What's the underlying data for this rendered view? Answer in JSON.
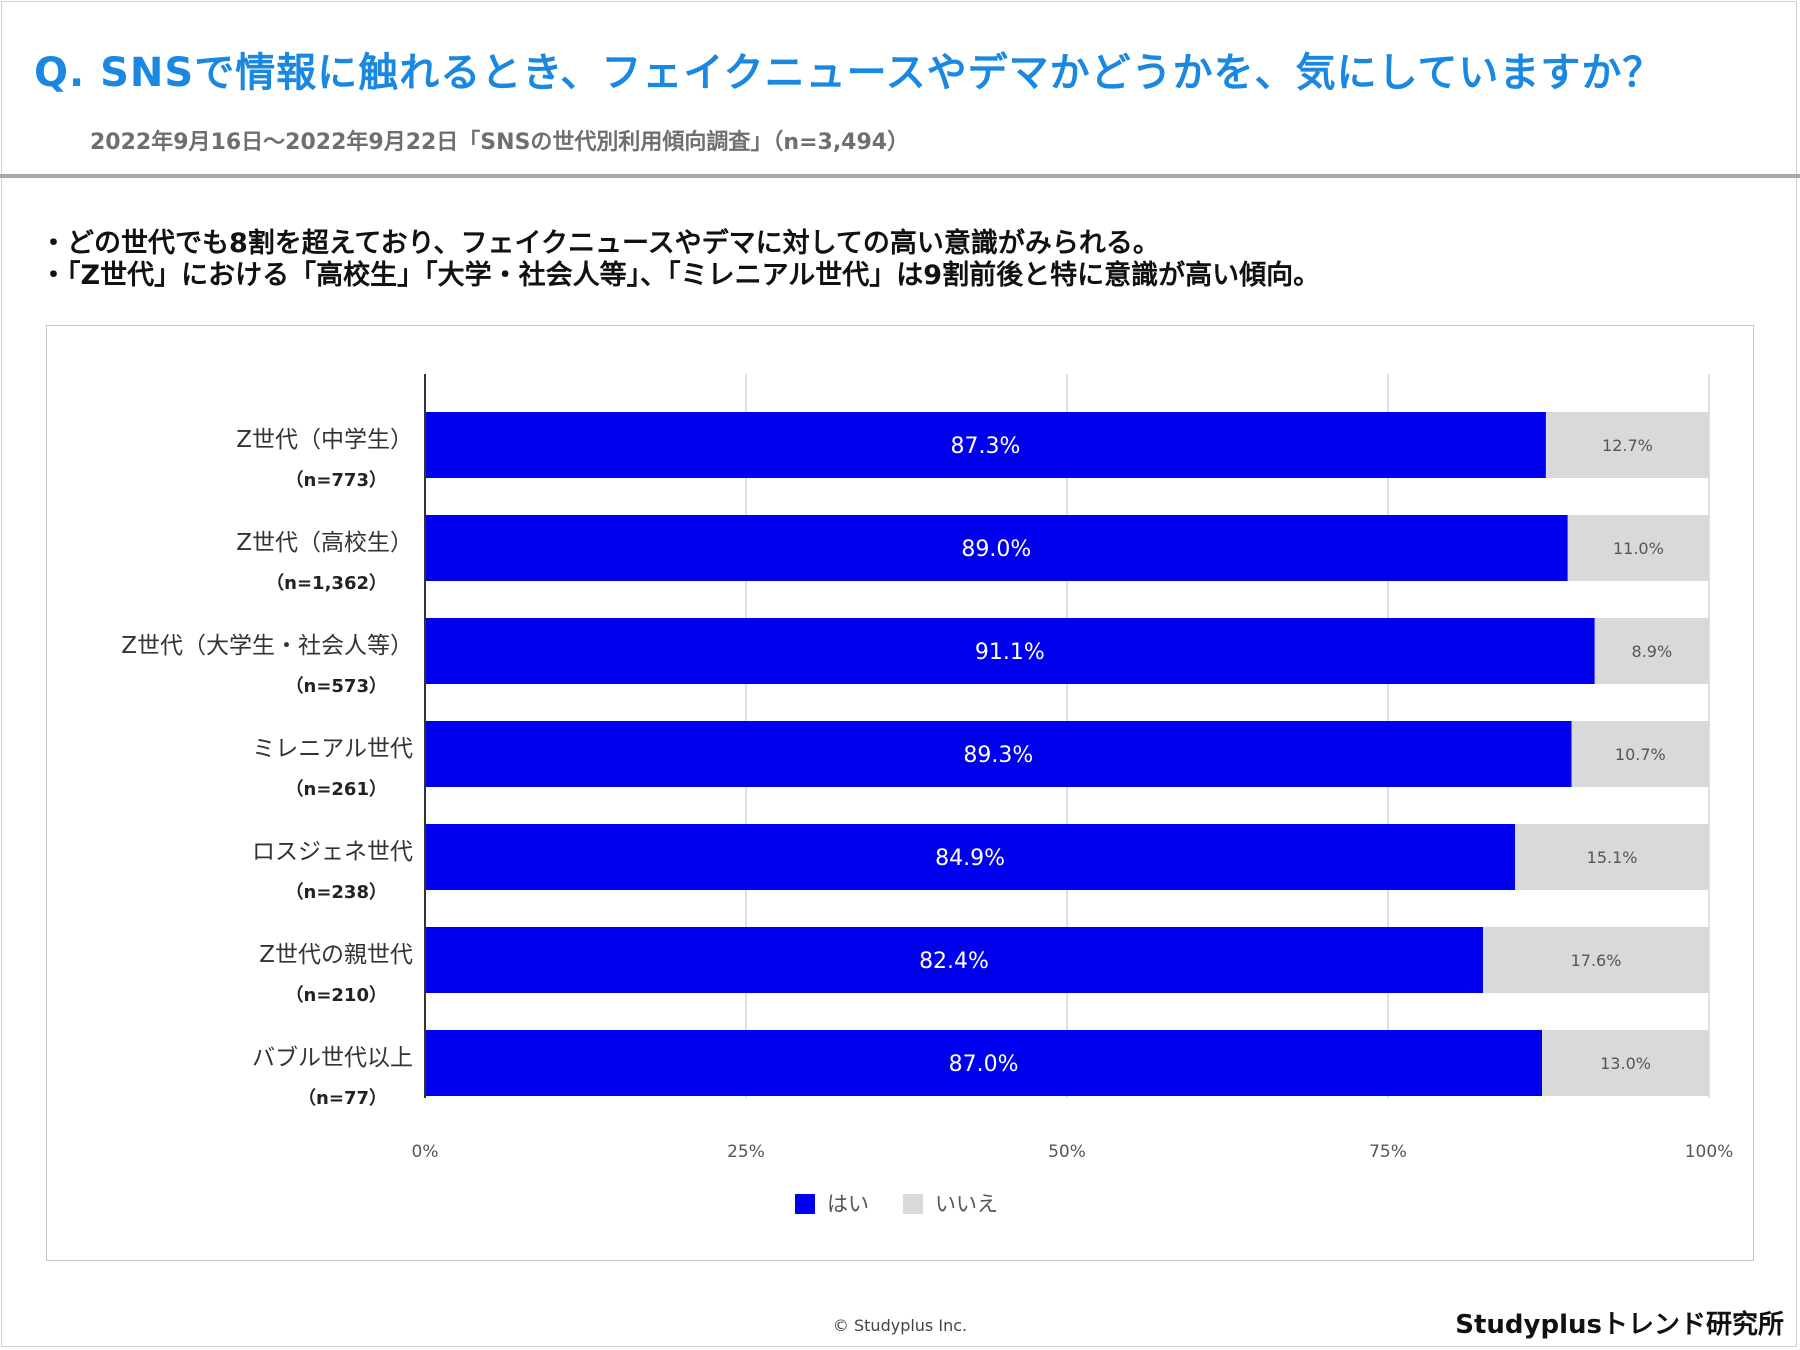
{
  "header": {
    "title": "Q. SNSで情報に触れるとき、フェイクニュースやデマかどうかを、気にしていますか？",
    "subtitle": "2022年9月16日〜2022年9月22日「SNSの世代別利用傾向調査」（n=3,494）"
  },
  "bullets": [
    "・どの世代でも8割を超えており、フェイクニュースやデマに対しての高い意識がみられる。",
    "・「Z世代」における「高校生」「大学・社会人等」、「ミレニアル世代」は9割前後と特に意識が高い傾向。"
  ],
  "chart_data": {
    "type": "bar",
    "orientation": "horizontal",
    "stacked": true,
    "categories": [
      {
        "label": "Z世代（中学生）",
        "n": "（n=773）"
      },
      {
        "label": "Z世代（高校生）",
        "n": "（n=1,362）"
      },
      {
        "label": "Z世代（大学生・社会人等）",
        "n": "（n=573）"
      },
      {
        "label": "ミレニアル世代",
        "n": "（n=261）"
      },
      {
        "label": "ロスジェネ世代",
        "n": "（n=238）"
      },
      {
        "label": "Z世代の親世代",
        "n": "（n=210）"
      },
      {
        "label": "バブル世代以上",
        "n": "（n=77）"
      }
    ],
    "series": [
      {
        "name": "はい",
        "color": "#0000ee",
        "values": [
          87.3,
          89.0,
          91.1,
          89.3,
          84.9,
          82.4,
          87.0
        ],
        "labels": [
          "87.3%",
          "89.0%",
          "91.1%",
          "89.3%",
          "84.9%",
          "82.4%",
          "87.0%"
        ]
      },
      {
        "name": "いいえ",
        "color": "#d9d9d9",
        "values": [
          12.7,
          11.0,
          8.9,
          10.7,
          15.1,
          17.6,
          13.0
        ],
        "labels": [
          "12.7%",
          "11.0%",
          "8.9%",
          "10.7%",
          "15.1%",
          "17.6%",
          "13.0%"
        ]
      }
    ],
    "xlim": [
      0,
      100
    ],
    "xticks": [
      "0%",
      "25%",
      "50%",
      "75%",
      "100%"
    ],
    "grid": true,
    "legend_position": "bottom"
  },
  "footer": {
    "copyright": "© Studyplus Inc.",
    "brand": "Studyplusトレンド研究所"
  }
}
